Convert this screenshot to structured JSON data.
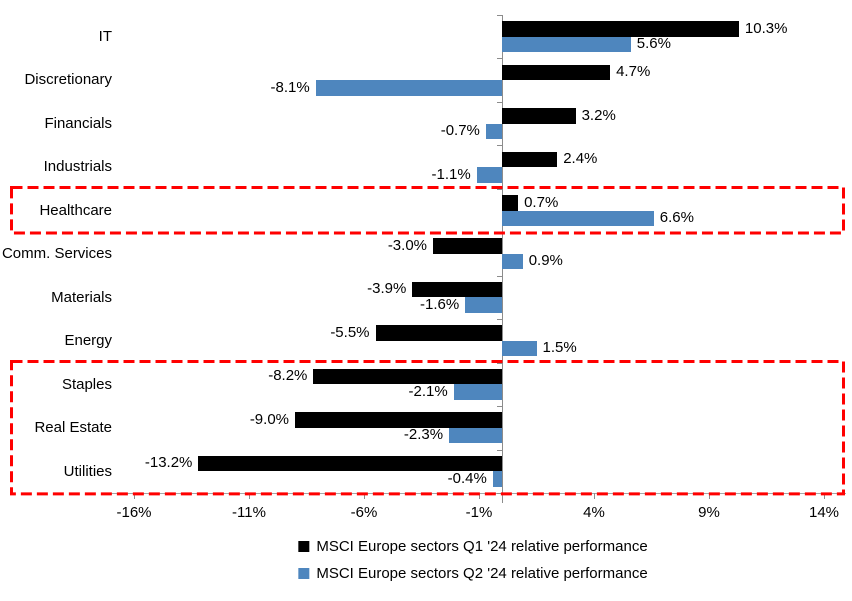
{
  "chart_data": {
    "type": "bar",
    "orientation": "horizontal",
    "title": "",
    "categories": [
      "IT",
      "Discretionary",
      "Financials",
      "Industrials",
      "Healthcare",
      "Comm. Services",
      "Materials",
      "Energy",
      "Staples",
      "Real Estate",
      "Utilities"
    ],
    "series": [
      {
        "name": "MSCI Europe sectors Q1 '24 relative performance",
        "color": "#000000",
        "values": [
          10.3,
          4.7,
          3.2,
          2.4,
          0.7,
          -3.0,
          -3.9,
          -5.5,
          -8.2,
          -9.0,
          -13.2
        ],
        "labels": [
          "10.3%",
          "4.7%",
          "3.2%",
          "2.4%",
          "0.7%",
          "-3.0%",
          "-3.9%",
          "-5.5%",
          "-8.2%",
          "-9.0%",
          "-13.2%"
        ]
      },
      {
        "name": "MSCI Europe sectors Q2 '24 relative performance",
        "color": "#4E86BE",
        "values": [
          5.6,
          -8.1,
          -0.7,
          -1.1,
          6.6,
          0.9,
          -1.6,
          1.5,
          -2.1,
          -2.3,
          -0.4
        ],
        "labels": [
          "5.6%",
          "-8.1%",
          "-0.7%",
          "-1.1%",
          "6.6%",
          "0.9%",
          "-1.6%",
          "1.5%",
          "-2.1%",
          "-2.3%",
          "-0.4%"
        ]
      }
    ],
    "x_axis": {
      "min": -17,
      "max": 14.95,
      "ticks": [
        -16,
        -11,
        -6,
        -1,
        4,
        9,
        14
      ],
      "tick_labels": [
        "-16%",
        "-11%",
        "-6%",
        "-1%",
        "4%",
        "9%",
        "14%"
      ],
      "unit": "%"
    },
    "grid": false,
    "legend_position": "bottom",
    "axis_color": "#8C8C8C",
    "highlights": [
      {
        "name": "highlight-box-healthcare",
        "start_category": "Healthcare",
        "end_category": "Healthcare",
        "color": "#FF0000"
      },
      {
        "name": "highlight-box-staples-realestate-utilities",
        "start_category": "Staples",
        "end_category": "Utilities",
        "color": "#FF0000"
      }
    ]
  }
}
